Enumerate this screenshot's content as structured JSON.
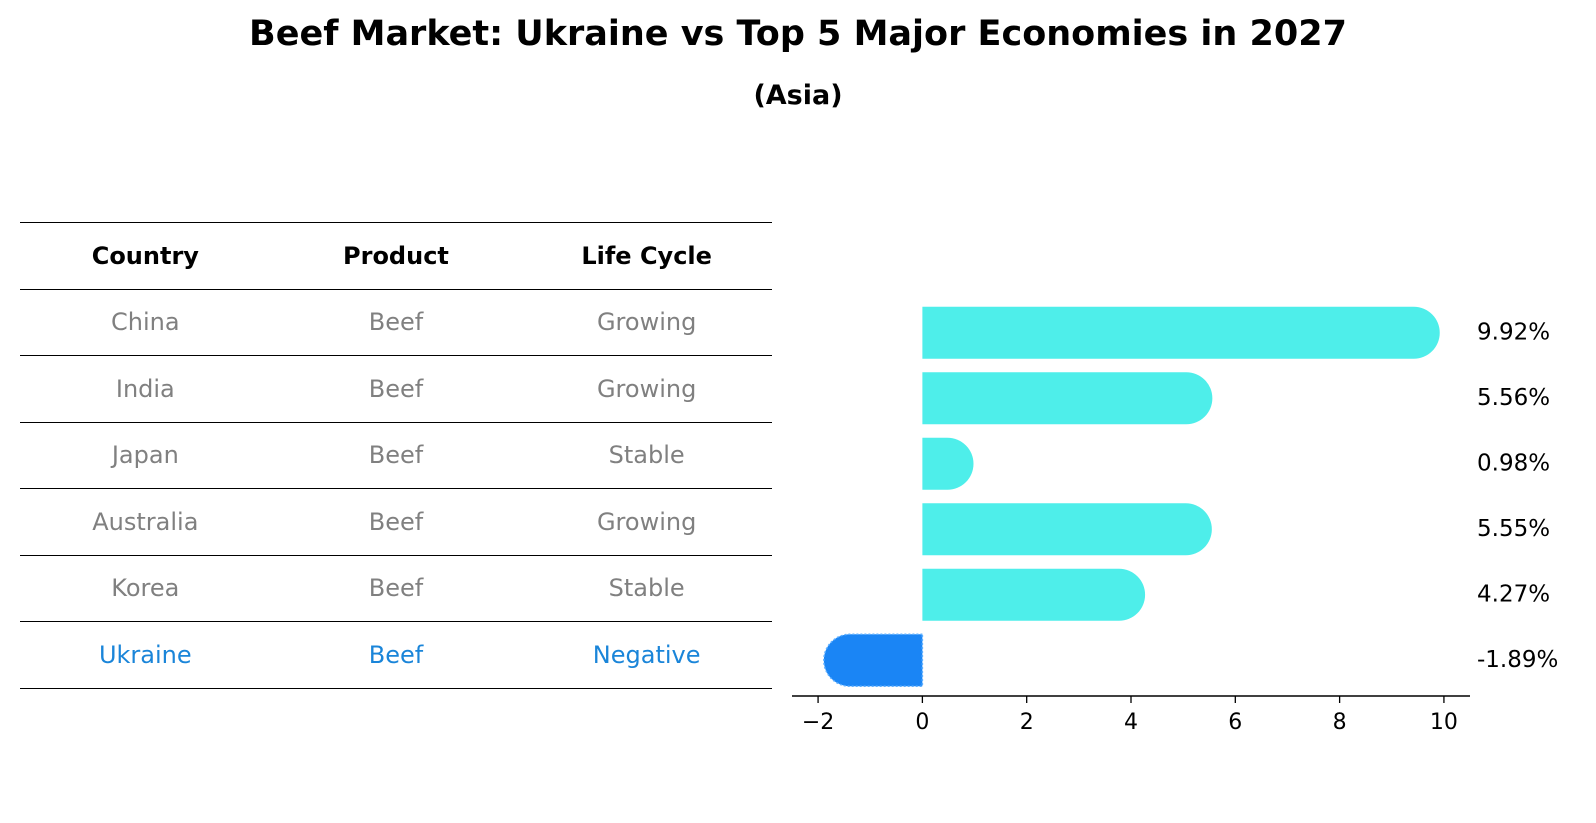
{
  "title": "Beef Market: Ukraine vs Top 5 Major Economies in 2027",
  "subtitle": "(Asia)",
  "table": {
    "headers": [
      "Country",
      "Product",
      "Life Cycle"
    ],
    "rows": [
      {
        "country": "China",
        "product": "Beef",
        "life_cycle": "Growing"
      },
      {
        "country": "India",
        "product": "Beef",
        "life_cycle": "Growing"
      },
      {
        "country": "Japan",
        "product": "Beef",
        "life_cycle": "Stable"
      },
      {
        "country": "Australia",
        "product": "Beef",
        "life_cycle": "Growing"
      },
      {
        "country": "Korea",
        "product": "Beef",
        "life_cycle": "Stable"
      },
      {
        "country": "Ukraine",
        "product": "Beef",
        "life_cycle": "Negative"
      }
    ]
  },
  "chart_data": {
    "type": "bar",
    "orientation": "horizontal",
    "title": "Beef Market: Ukraine vs Top 5 Major Economies in 2027",
    "subtitle": "(Asia)",
    "categories": [
      "China",
      "India",
      "Japan",
      "Australia",
      "Korea",
      "Ukraine"
    ],
    "values": [
      9.92,
      5.56,
      0.98,
      5.55,
      4.27,
      -1.89
    ],
    "value_labels": [
      "9.92%",
      "5.56%",
      "0.98%",
      "5.55%",
      "4.27%",
      "-1.89%"
    ],
    "xlim": [
      -2.5,
      10.5
    ],
    "xticks": [
      -2,
      0,
      2,
      4,
      6,
      8,
      10
    ],
    "xtick_labels": [
      "−2",
      "0",
      "2",
      "4",
      "6",
      "8",
      "10"
    ],
    "highlight": "Ukraine",
    "colors": {
      "default": "#4eeeea",
      "highlight": "#1a85f5"
    },
    "grid": false,
    "legend": "none"
  }
}
